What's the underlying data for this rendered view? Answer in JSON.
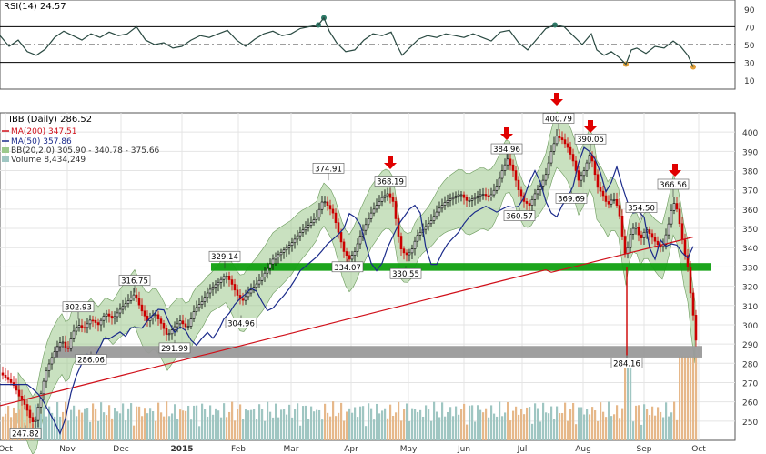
{
  "rsi_panel": {
    "label": "RSI(14) 24.57",
    "levels": [
      90,
      70,
      50,
      30,
      10
    ],
    "overbought": 70,
    "oversold": 30,
    "centerline": 50
  },
  "legend": {
    "title": "IBB (Daily) 286.52",
    "ma200": "MA(200) 347.51",
    "ma50": "MA(50) 357.86",
    "bb": "BB(20,2.0) 305.90 - 340.78 - 375.66",
    "volume": "Volume 8,434,249"
  },
  "colors": {
    "ma200": "#d0101a",
    "ma50": "#1a2a8a",
    "bb_fill": "#9cc98c",
    "support_band": "#11a011",
    "gray_band": "#9a9a9a",
    "rsi_line": "#2a4a42",
    "arrow": "#e00000",
    "volume_up": "#9fc6c2",
    "volume_down": "#e6b88a"
  },
  "chart_data": {
    "type": "candlestick",
    "y_axis": {
      "range": [
        240,
        410
      ],
      "ticks": [
        250,
        260,
        270,
        280,
        290,
        300,
        310,
        320,
        330,
        340,
        350,
        360,
        370,
        380,
        390,
        400
      ]
    },
    "x_axis": {
      "labels": [
        "Oct",
        "Nov",
        "Dec",
        "2015",
        "Feb",
        "Mar",
        "Apr",
        "May",
        "Jun",
        "Jul",
        "Aug",
        "Sep",
        "Oct"
      ]
    },
    "close_series": [
      [
        0,
        275
      ],
      [
        8,
        272
      ],
      [
        16,
        268
      ],
      [
        22,
        262
      ],
      [
        28,
        258
      ],
      [
        33,
        252
      ],
      [
        38,
        248
      ],
      [
        44,
        262
      ],
      [
        50,
        275
      ],
      [
        56,
        282
      ],
      [
        62,
        288
      ],
      [
        68,
        292
      ],
      [
        74,
        286
      ],
      [
        80,
        296
      ],
      [
        86,
        300
      ],
      [
        92,
        298
      ],
      [
        100,
        303
      ],
      [
        108,
        300
      ],
      [
        116,
        306
      ],
      [
        124,
        303
      ],
      [
        132,
        308
      ],
      [
        140,
        312
      ],
      [
        148,
        316
      ],
      [
        155,
        308
      ],
      [
        162,
        302
      ],
      [
        170,
        306
      ],
      [
        178,
        300
      ],
      [
        184,
        294
      ],
      [
        190,
        298
      ],
      [
        198,
        302
      ],
      [
        206,
        298
      ],
      [
        214,
        308
      ],
      [
        222,
        312
      ],
      [
        230,
        318
      ],
      [
        240,
        322
      ],
      [
        248,
        326
      ],
      [
        254,
        322
      ],
      [
        260,
        316
      ],
      [
        266,
        312
      ],
      [
        272,
        316
      ],
      [
        280,
        320
      ],
      [
        290,
        326
      ],
      [
        300,
        334
      ],
      [
        310,
        338
      ],
      [
        320,
        342
      ],
      [
        330,
        348
      ],
      [
        340,
        352
      ],
      [
        348,
        356
      ],
      [
        355,
        365
      ],
      [
        360,
        362
      ],
      [
        366,
        358
      ],
      [
        372,
        348
      ],
      [
        378,
        338
      ],
      [
        384,
        334
      ],
      [
        390,
        338
      ],
      [
        396,
        346
      ],
      [
        402,
        352
      ],
      [
        408,
        358
      ],
      [
        414,
        362
      ],
      [
        420,
        366
      ],
      [
        426,
        368
      ],
      [
        432,
        364
      ],
      [
        436,
        352
      ],
      [
        440,
        340
      ],
      [
        446,
        336
      ],
      [
        452,
        338
      ],
      [
        458,
        346
      ],
      [
        466,
        350
      ],
      [
        474,
        354
      ],
      [
        482,
        360
      ],
      [
        490,
        364
      ],
      [
        498,
        366
      ],
      [
        506,
        368
      ],
      [
        514,
        364
      ],
      [
        522,
        366
      ],
      [
        530,
        368
      ],
      [
        538,
        366
      ],
      [
        546,
        372
      ],
      [
        552,
        380
      ],
      [
        558,
        386
      ],
      [
        564,
        380
      ],
      [
        570,
        370
      ],
      [
        576,
        364
      ],
      [
        582,
        362
      ],
      [
        588,
        368
      ],
      [
        594,
        372
      ],
      [
        600,
        378
      ],
      [
        606,
        390
      ],
      [
        612,
        398
      ],
      [
        618,
        396
      ],
      [
        624,
        392
      ],
      [
        630,
        385
      ],
      [
        636,
        375
      ],
      [
        642,
        380
      ],
      [
        648,
        388
      ],
      [
        652,
        384
      ],
      [
        656,
        372
      ],
      [
        662,
        368
      ],
      [
        668,
        362
      ],
      [
        674,
        366
      ],
      [
        680,
        360
      ],
      [
        684,
        346
      ],
      [
        688,
        334
      ],
      [
        692,
        346
      ],
      [
        698,
        352
      ],
      [
        704,
        344
      ],
      [
        710,
        350
      ],
      [
        716,
        346
      ],
      [
        722,
        342
      ],
      [
        728,
        340
      ],
      [
        734,
        350
      ],
      [
        740,
        364
      ],
      [
        744,
        360
      ],
      [
        748,
        350
      ],
      [
        752,
        338
      ],
      [
        756,
        330
      ],
      [
        760,
        312
      ],
      [
        764,
        298
      ],
      [
        766,
        286
      ]
    ],
    "annotations": [
      {
        "label": "247.82",
        "x": 28,
        "y": 247.82
      },
      {
        "label": "286.06",
        "x": 100,
        "y": 286.06
      },
      {
        "label": "302.93",
        "x": 86,
        "y": 302.93
      },
      {
        "label": "316.75",
        "x": 148,
        "y": 316.75
      },
      {
        "label": "291.99",
        "x": 192,
        "y": 291.99
      },
      {
        "label": "329.14",
        "x": 247,
        "y": 329.14
      },
      {
        "label": "304.96",
        "x": 265,
        "y": 304.96
      },
      {
        "label": "374.91",
        "x": 361,
        "y": 374.91
      },
      {
        "label": "334.07",
        "x": 382,
        "y": 334.07
      },
      {
        "label": "368.19",
        "x": 429,
        "y": 368.19
      },
      {
        "label": "330.55",
        "x": 446,
        "y": 330.55
      },
      {
        "label": "384.96",
        "x": 557,
        "y": 384.96
      },
      {
        "label": "360.57",
        "x": 571,
        "y": 360.57
      },
      {
        "label": "400.79",
        "x": 614,
        "y": 400.79
      },
      {
        "label": "390.05",
        "x": 649,
        "y": 390.05
      },
      {
        "label": "369.69",
        "x": 628,
        "y": 369.69
      },
      {
        "label": "354.50",
        "x": 705,
        "y": 354.5
      },
      {
        "label": "366.56",
        "x": 740,
        "y": 366.56
      },
      {
        "label": "284.16",
        "x": 689,
        "y": 284.16
      }
    ],
    "arrows": [
      {
        "x": 429
      },
      {
        "x": 557
      },
      {
        "x": 612
      },
      {
        "x": 649
      },
      {
        "x": 742
      }
    ],
    "bands": [
      {
        "name": "green-support",
        "y_range": [
          328,
          332
        ],
        "x_range": [
          232,
          782
        ]
      },
      {
        "name": "gray-support",
        "y_range": [
          283,
          289
        ],
        "x_range": [
          60,
          772
        ]
      }
    ],
    "rsi_series": [
      [
        0,
        60
      ],
      [
        10,
        48
      ],
      [
        20,
        55
      ],
      [
        30,
        42
      ],
      [
        40,
        38
      ],
      [
        50,
        45
      ],
      [
        60,
        58
      ],
      [
        70,
        65
      ],
      [
        80,
        60
      ],
      [
        90,
        55
      ],
      [
        100,
        62
      ],
      [
        110,
        58
      ],
      [
        120,
        64
      ],
      [
        130,
        60
      ],
      [
        140,
        62
      ],
      [
        150,
        70
      ],
      [
        160,
        55
      ],
      [
        170,
        50
      ],
      [
        180,
        52
      ],
      [
        190,
        46
      ],
      [
        200,
        48
      ],
      [
        210,
        55
      ],
      [
        220,
        60
      ],
      [
        230,
        58
      ],
      [
        240,
        62
      ],
      [
        250,
        66
      ],
      [
        260,
        55
      ],
      [
        270,
        48
      ],
      [
        280,
        56
      ],
      [
        290,
        62
      ],
      [
        300,
        65
      ],
      [
        310,
        60
      ],
      [
        320,
        62
      ],
      [
        330,
        68
      ],
      [
        340,
        70
      ],
      [
        350,
        72
      ],
      [
        356,
        80
      ],
      [
        362,
        65
      ],
      [
        370,
        52
      ],
      [
        380,
        42
      ],
      [
        390,
        44
      ],
      [
        400,
        55
      ],
      [
        410,
        62
      ],
      [
        420,
        60
      ],
      [
        430,
        64
      ],
      [
        436,
        50
      ],
      [
        442,
        38
      ],
      [
        450,
        46
      ],
      [
        460,
        56
      ],
      [
        470,
        60
      ],
      [
        480,
        58
      ],
      [
        490,
        62
      ],
      [
        500,
        60
      ],
      [
        510,
        58
      ],
      [
        520,
        62
      ],
      [
        530,
        58
      ],
      [
        540,
        54
      ],
      [
        550,
        64
      ],
      [
        560,
        66
      ],
      [
        570,
        52
      ],
      [
        580,
        44
      ],
      [
        590,
        56
      ],
      [
        600,
        68
      ],
      [
        610,
        72
      ],
      [
        620,
        70
      ],
      [
        630,
        60
      ],
      [
        640,
        50
      ],
      [
        650,
        62
      ],
      [
        656,
        44
      ],
      [
        664,
        38
      ],
      [
        672,
        42
      ],
      [
        680,
        36
      ],
      [
        688,
        28
      ],
      [
        694,
        44
      ],
      [
        700,
        46
      ],
      [
        710,
        40
      ],
      [
        720,
        48
      ],
      [
        730,
        46
      ],
      [
        740,
        54
      ],
      [
        748,
        48
      ],
      [
        756,
        38
      ],
      [
        762,
        25
      ]
    ],
    "volume_range": [
      0,
      30
    ]
  }
}
